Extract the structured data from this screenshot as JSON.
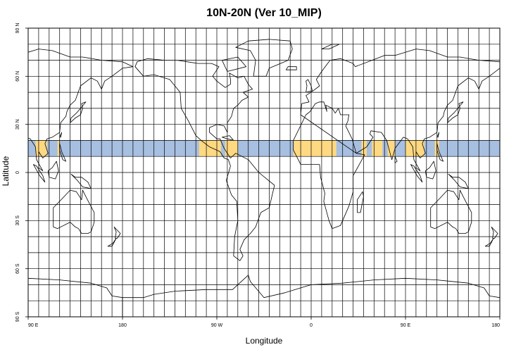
{
  "title": "10N-20N (Ver 10_MIP)",
  "x_axis": {
    "label": "Longitude",
    "ticks": [
      {
        "lon": 90,
        "label": "90 E"
      },
      {
        "lon": 180,
        "label": "180"
      },
      {
        "lon": 270,
        "label": "90 W"
      },
      {
        "lon": 360,
        "label": "0"
      },
      {
        "lon": 450,
        "label": "90 E"
      },
      {
        "lon": 540,
        "label": "180"
      }
    ],
    "range": [
      90,
      540
    ]
  },
  "y_axis": {
    "label": "Latitude",
    "ticks": [
      {
        "lat": 90,
        "label": "90 N"
      },
      {
        "lat": 60,
        "label": "60 N"
      },
      {
        "lat": 30,
        "label": "30 N"
      },
      {
        "lat": 0,
        "label": "0"
      },
      {
        "lat": -30,
        "label": "30 S"
      },
      {
        "lat": -60,
        "label": "60 S"
      },
      {
        "lat": -90,
        "label": "90 S"
      }
    ],
    "range": [
      -90,
      90
    ]
  },
  "grid": {
    "lon_step_deg": 10,
    "lat_step_deg": 10,
    "color": "#000000"
  },
  "highlight_band": {
    "lat_min": 10,
    "lat_max": 20,
    "ocean_color": "#a7bfe0",
    "land_color": "#ffd982"
  },
  "colors": {
    "background": "#ffffff",
    "coastline": "#000000"
  }
}
